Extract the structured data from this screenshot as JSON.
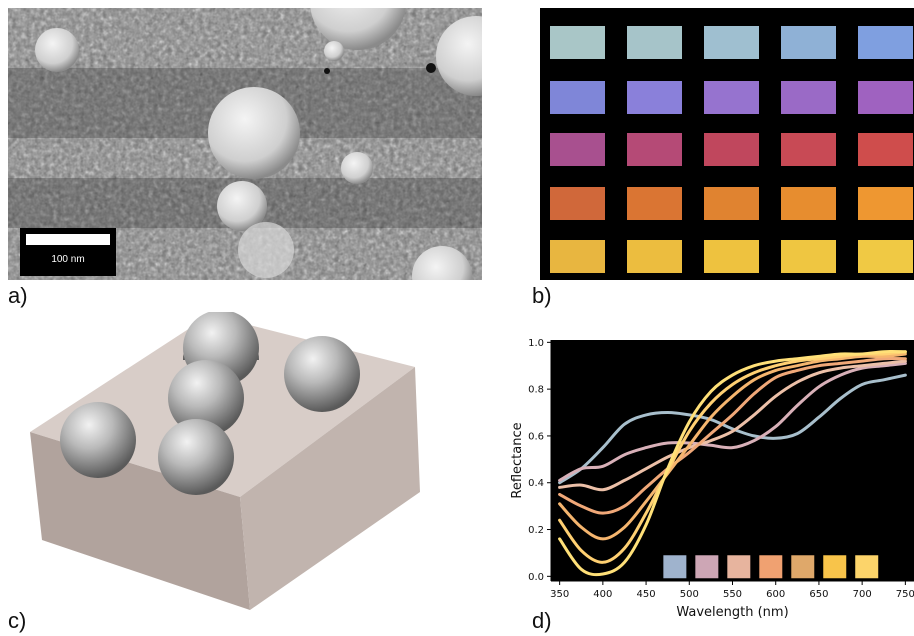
{
  "panels": {
    "a": {
      "label": "a)",
      "scale_bar": "100 nm"
    },
    "b": {
      "label": "b)",
      "swatch_colors": [
        [
          "#a9c6c7",
          "#a6c4c9",
          "#9fbfd0",
          "#8fb1d6",
          "#7f9fe0"
        ],
        [
          "#7f86d8",
          "#8a80da",
          "#9673cf",
          "#9a6ac6",
          "#9f62c0"
        ],
        [
          "#a8508f",
          "#b54a76",
          "#c0475d",
          "#c84a55",
          "#cf4d4c"
        ],
        [
          "#d0683a",
          "#da7533",
          "#e08330",
          "#e78d2f",
          "#ee9731"
        ],
        [
          "#e8b640",
          "#ecbd3f",
          "#eec23f",
          "#efc641",
          "#f0c944"
        ]
      ]
    },
    "c": {
      "label": "c)"
    },
    "d": {
      "label": "d)"
    }
  },
  "chart_data": {
    "type": "line",
    "xlabel": "Wavelength (nm)",
    "ylabel": "Reflectance",
    "xlim": [
      340,
      760
    ],
    "ylim": [
      -0.02,
      1.01
    ],
    "x_ticks": [
      "350",
      "400",
      "450",
      "500",
      "550",
      "600",
      "650",
      "700",
      "750"
    ],
    "y_ticks": [
      "0.0",
      "0.2",
      "0.4",
      "0.6",
      "0.8",
      "1.0"
    ],
    "x": [
      350,
      375,
      400,
      425,
      450,
      475,
      500,
      525,
      550,
      575,
      600,
      625,
      650,
      675,
      700,
      725,
      750
    ],
    "series": [
      {
        "color": "#a8bfcc",
        "values": [
          0.4,
          0.46,
          0.55,
          0.65,
          0.69,
          0.7,
          0.69,
          0.67,
          0.63,
          0.6,
          0.59,
          0.61,
          0.68,
          0.76,
          0.82,
          0.84,
          0.86
        ]
      },
      {
        "color": "#d8b0b8",
        "values": [
          0.41,
          0.46,
          0.47,
          0.52,
          0.55,
          0.57,
          0.57,
          0.56,
          0.55,
          0.58,
          0.64,
          0.73,
          0.81,
          0.86,
          0.89,
          0.9,
          0.91
        ]
      },
      {
        "color": "#ecc0a8",
        "values": [
          0.38,
          0.39,
          0.37,
          0.41,
          0.46,
          0.51,
          0.55,
          0.58,
          0.62,
          0.69,
          0.77,
          0.83,
          0.87,
          0.89,
          0.9,
          0.91,
          0.92
        ]
      },
      {
        "color": "#f0a878",
        "values": [
          0.35,
          0.3,
          0.27,
          0.3,
          0.38,
          0.46,
          0.53,
          0.61,
          0.69,
          0.78,
          0.85,
          0.88,
          0.9,
          0.91,
          0.92,
          0.93,
          0.93
        ]
      },
      {
        "color": "#f5b56e",
        "values": [
          0.31,
          0.21,
          0.16,
          0.21,
          0.32,
          0.44,
          0.56,
          0.68,
          0.77,
          0.84,
          0.88,
          0.9,
          0.92,
          0.93,
          0.94,
          0.94,
          0.95
        ]
      },
      {
        "color": "#ffd072",
        "values": [
          0.24,
          0.11,
          0.06,
          0.12,
          0.27,
          0.45,
          0.62,
          0.74,
          0.82,
          0.87,
          0.9,
          0.92,
          0.93,
          0.94,
          0.95,
          0.95,
          0.96
        ]
      },
      {
        "color": "#ffe078",
        "values": [
          0.16,
          0.03,
          0.01,
          0.06,
          0.22,
          0.46,
          0.66,
          0.79,
          0.86,
          0.9,
          0.92,
          0.93,
          0.94,
          0.95,
          0.95,
          0.96,
          0.96
        ]
      }
    ],
    "legend_swatches": [
      "#9fb3cd",
      "#cda6b5",
      "#e7b49e",
      "#f0a171",
      "#dfa86a",
      "#f8c44a",
      "#fcd46a"
    ]
  }
}
